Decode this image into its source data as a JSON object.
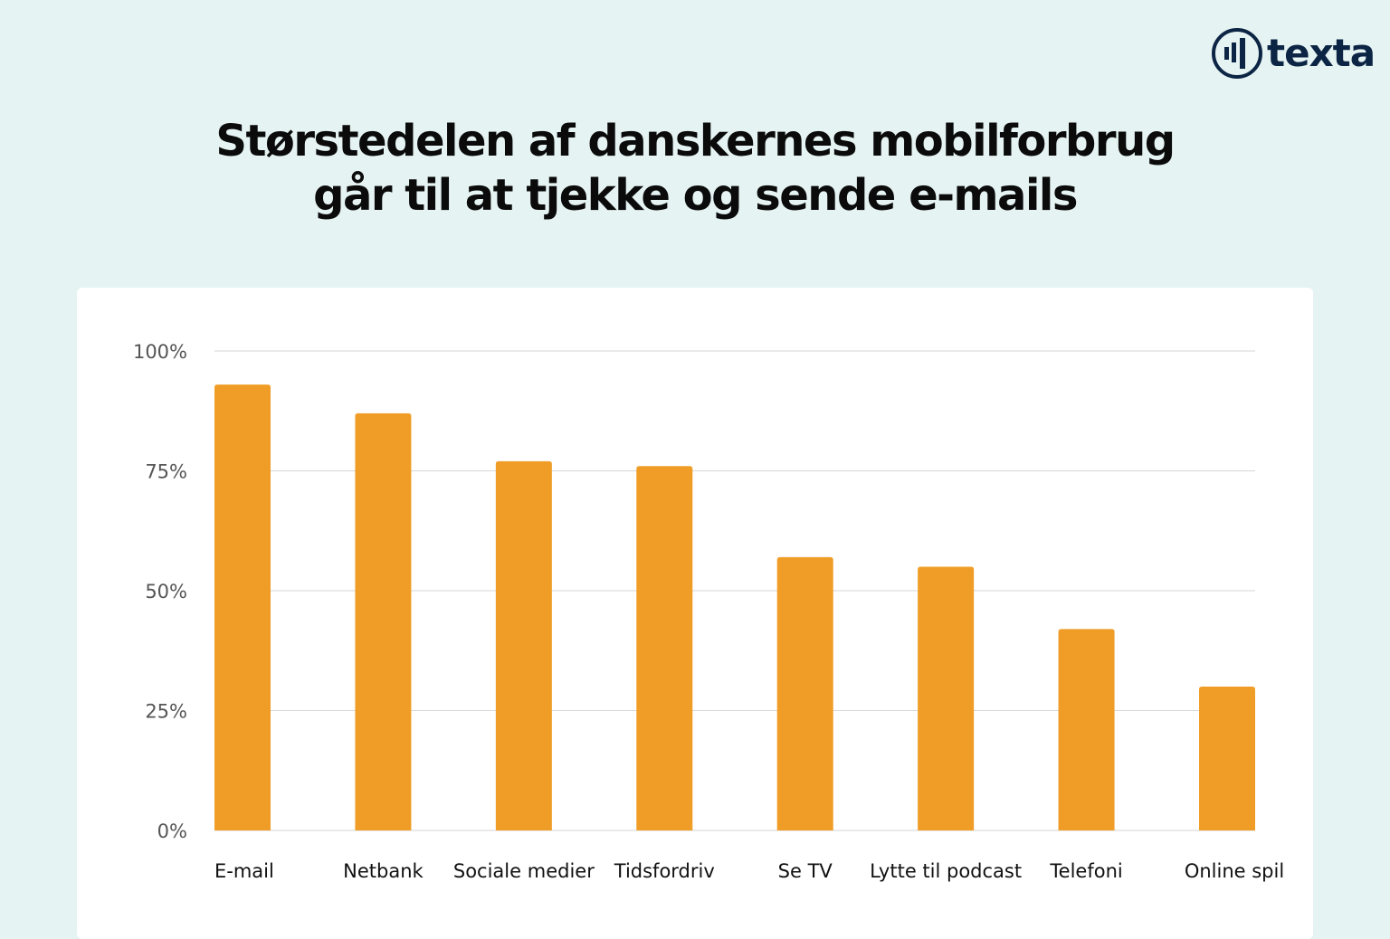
{
  "logo": {
    "text": "texta"
  },
  "chart_data": {
    "type": "bar",
    "title": "Størstedelen af danskernes mobilforbrug går til at tjekke og sende e-mails",
    "title_lines": [
      "Størstedelen af danskernes mobilforbrug",
      "går til at tjekke og sende e-mails"
    ],
    "categories": [
      "E-mail",
      "Netbank",
      "Sociale medier",
      "Tidsfordriv",
      "Se TV",
      "Lytte til podcast",
      "Telefoni",
      "Online spil"
    ],
    "values": [
      93,
      87,
      77,
      76,
      57,
      55,
      42,
      30
    ],
    "ylim": [
      0,
      100
    ],
    "yticks": [
      0,
      25,
      50,
      75,
      100
    ],
    "ytick_labels": [
      "0%",
      "25%",
      "50%",
      "75%",
      "100%"
    ],
    "xlabel": "",
    "ylabel": "",
    "grid": true,
    "bar_color": "#ef9d26"
  }
}
